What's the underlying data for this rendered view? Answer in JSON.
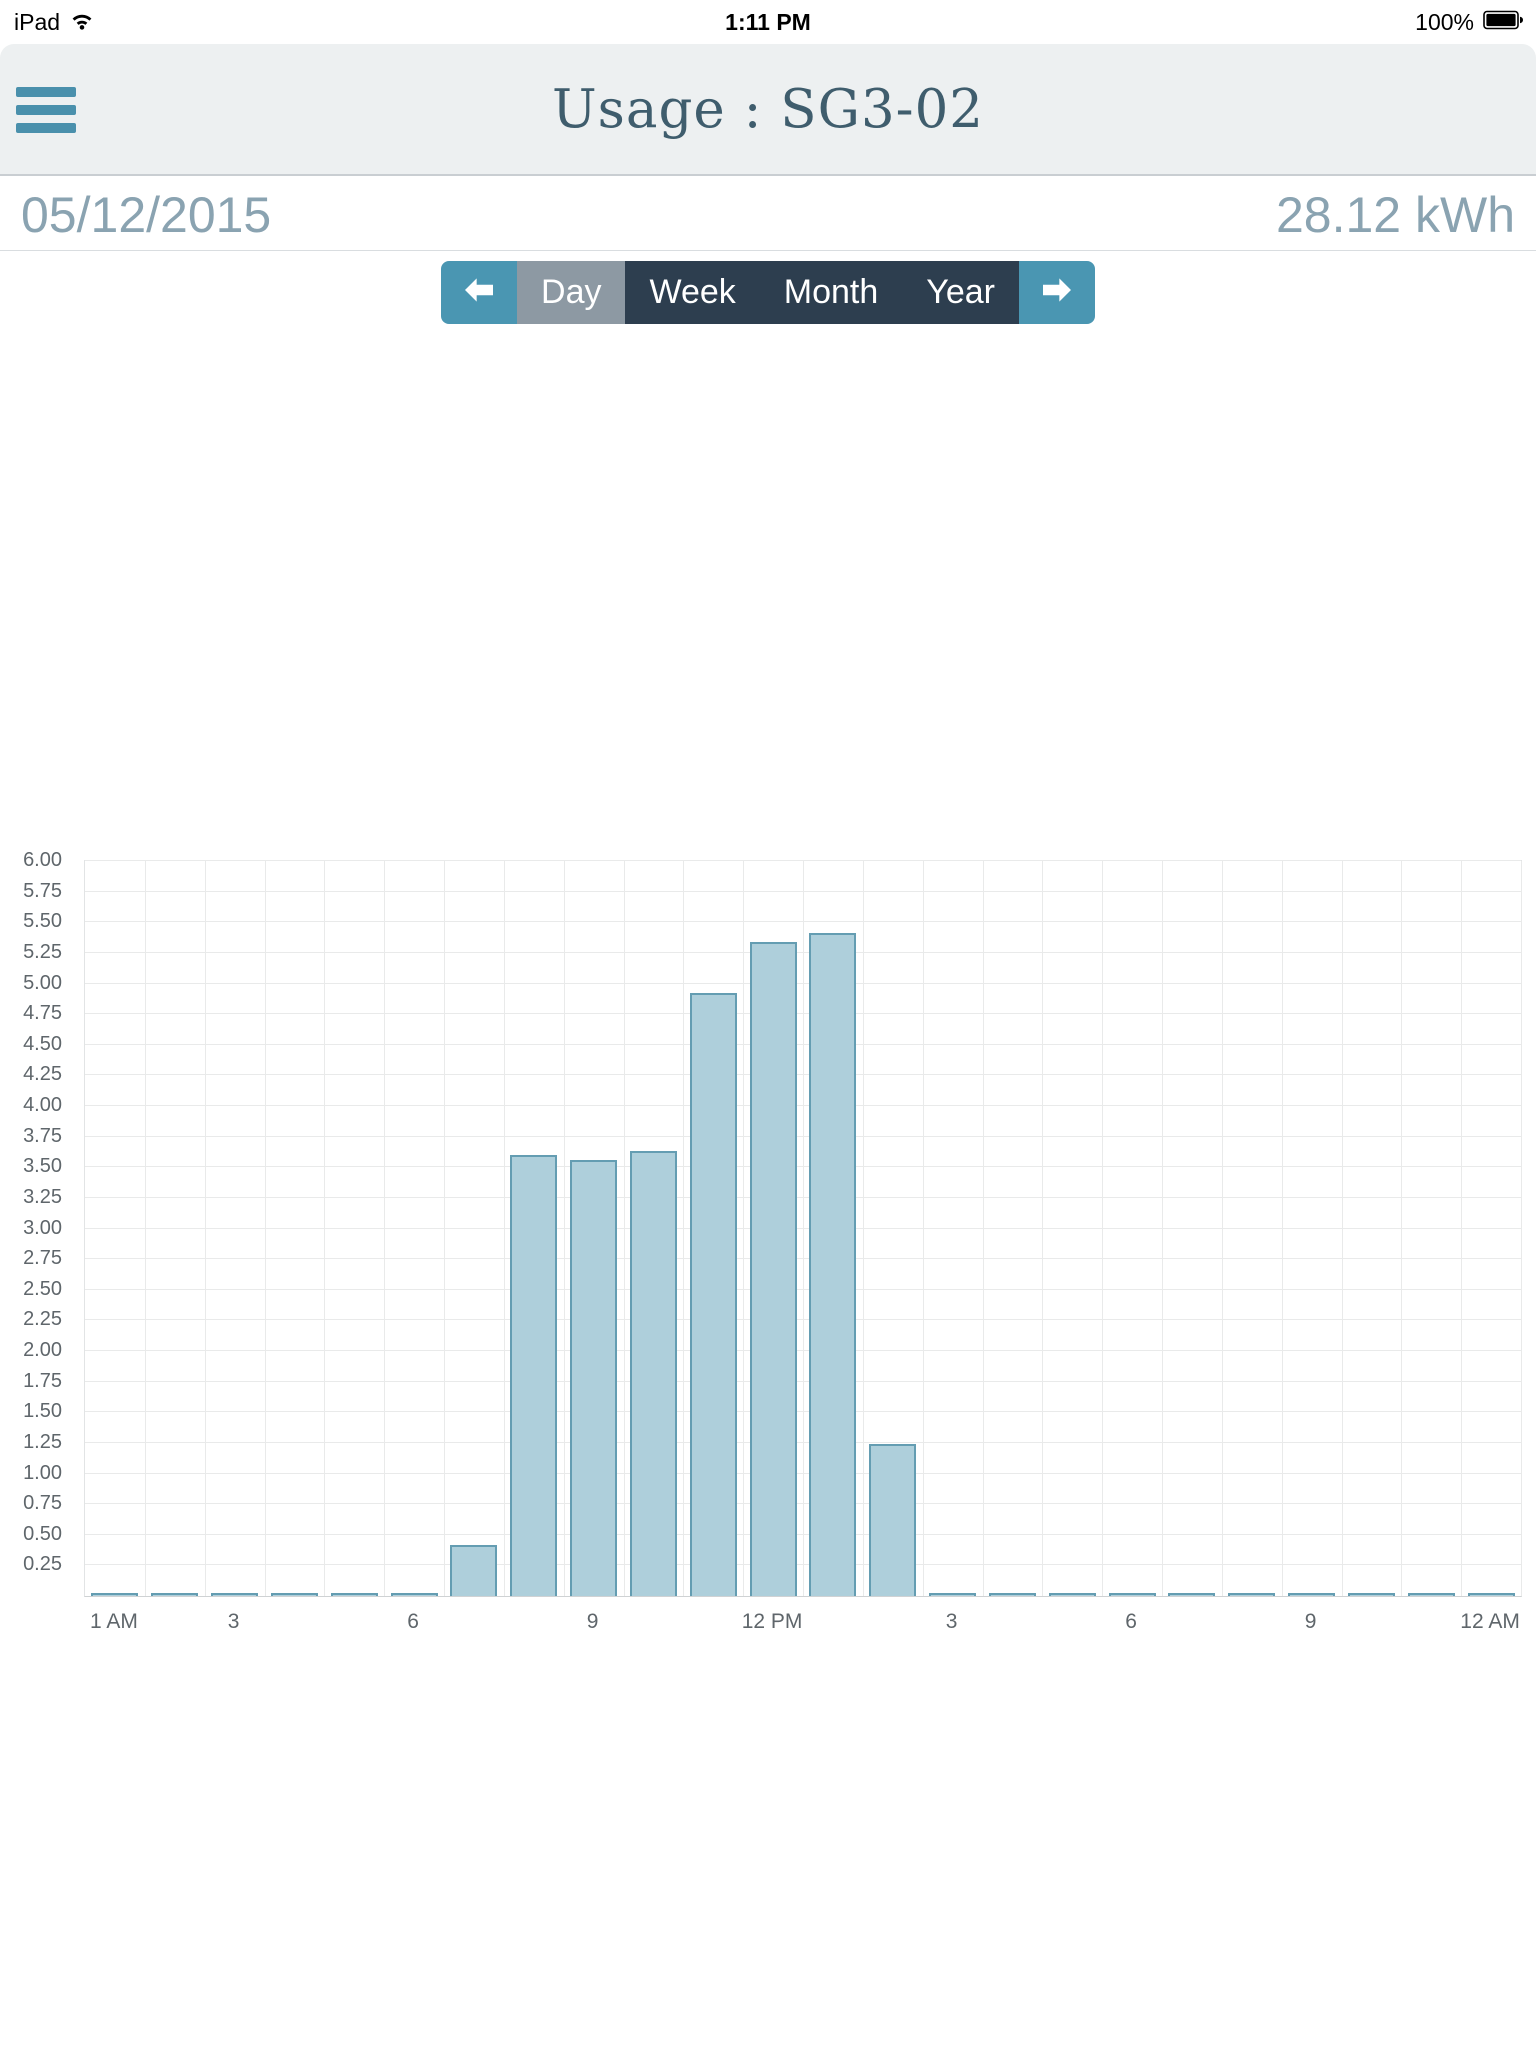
{
  "status_bar": {
    "carrier": "iPad",
    "time": "1:11 PM",
    "battery_percent": "100%"
  },
  "header": {
    "title": "Usage : SG3-02"
  },
  "summary": {
    "date": "05/12/2015",
    "total": "28.12 kWh"
  },
  "controls": {
    "prev_icon": "left-arrow",
    "next_icon": "right-arrow",
    "segments": [
      "Day",
      "Week",
      "Month",
      "Year"
    ],
    "selected": "Day"
  },
  "chart_data": {
    "type": "bar",
    "title": "",
    "xlabel": "",
    "ylabel": "",
    "ylim": [
      0,
      6
    ],
    "grid": true,
    "total_kwh": 28.12,
    "hours": [
      1,
      2,
      3,
      4,
      5,
      6,
      7,
      8,
      9,
      10,
      11,
      12,
      13,
      14,
      15,
      16,
      17,
      18,
      19,
      20,
      21,
      22,
      23,
      24
    ],
    "values": [
      0,
      0,
      0,
      0,
      0,
      0,
      0.42,
      3.6,
      3.56,
      3.63,
      4.92,
      5.34,
      5.41,
      1.24,
      0,
      0,
      0,
      0,
      0,
      0,
      0,
      0,
      0,
      0
    ],
    "yticks": [
      "0.25",
      "0.50",
      "0.75",
      "1.00",
      "1.25",
      "1.50",
      "1.75",
      "2.00",
      "2.25",
      "2.50",
      "2.75",
      "3.00",
      "3.25",
      "3.50",
      "3.75",
      "4.00",
      "4.25",
      "4.50",
      "4.75",
      "5.00",
      "5.25",
      "5.50",
      "5.75",
      "6.00"
    ],
    "xticks": [
      {
        "hour": 1,
        "label": "1 AM"
      },
      {
        "hour": 3,
        "label": "3"
      },
      {
        "hour": 6,
        "label": "6"
      },
      {
        "hour": 9,
        "label": "9"
      },
      {
        "hour": 12,
        "label": "12 PM"
      },
      {
        "hour": 15,
        "label": "3"
      },
      {
        "hour": 18,
        "label": "6"
      },
      {
        "hour": 21,
        "label": "9"
      },
      {
        "hour": 24,
        "label": "12 AM"
      }
    ],
    "colors": {
      "bar_fill": "#aecfdb",
      "bar_border": "#649db2",
      "grid": "#e9eaea",
      "accent": "#4a96b2",
      "dark_segment": "#2d3e4f",
      "selected_segment": "#8d99a3",
      "muted_text": "#8aa3b1"
    }
  }
}
